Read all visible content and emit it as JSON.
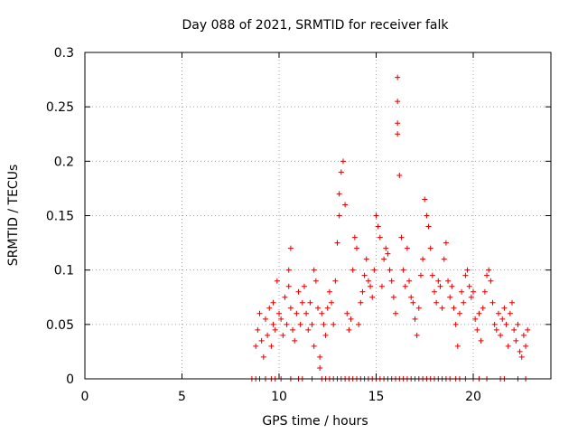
{
  "chart_data": {
    "type": "scatter",
    "title": "Day 088 of 2021, SRMTID for receiver falk",
    "xlabel": "GPS time / hours",
    "ylabel": "SRMTID / TECUs",
    "xlim": [
      0,
      24
    ],
    "ylim": [
      0,
      0.3
    ],
    "x_ticks": [
      0,
      5,
      10,
      15,
      20
    ],
    "x_tick_labels": [
      "0",
      "5",
      "10",
      "15",
      "20"
    ],
    "y_ticks": [
      0,
      0.05,
      0.1,
      0.15,
      0.2,
      0.25,
      0.3
    ],
    "y_tick_labels": [
      "0",
      "0.05",
      "0.1",
      "0.15",
      "0.2",
      "0.25",
      "0.3"
    ],
    "grid": true,
    "marker": "+",
    "series": [
      {
        "name": "SRMTID",
        "color": "#dd0000",
        "points": [
          [
            8.6,
            0
          ],
          [
            8.8,
            0
          ],
          [
            9.0,
            0
          ],
          [
            9.3,
            0
          ],
          [
            9.6,
            0
          ],
          [
            9.8,
            0
          ],
          [
            10.1,
            0
          ],
          [
            10.6,
            0
          ],
          [
            11.0,
            0
          ],
          [
            11.2,
            0
          ],
          [
            11.7,
            0
          ],
          [
            12.2,
            0
          ],
          [
            12.4,
            0
          ],
          [
            12.6,
            0
          ],
          [
            12.8,
            0
          ],
          [
            13.0,
            0
          ],
          [
            13.2,
            0
          ],
          [
            13.4,
            0
          ],
          [
            13.6,
            0
          ],
          [
            13.8,
            0
          ],
          [
            14.0,
            0
          ],
          [
            14.2,
            0
          ],
          [
            14.4,
            0
          ],
          [
            14.6,
            0
          ],
          [
            14.8,
            0
          ],
          [
            15.0,
            0
          ],
          [
            15.2,
            0
          ],
          [
            15.4,
            0
          ],
          [
            15.6,
            0
          ],
          [
            15.8,
            0
          ],
          [
            16.0,
            0
          ],
          [
            16.2,
            0
          ],
          [
            16.4,
            0
          ],
          [
            16.6,
            0
          ],
          [
            16.8,
            0
          ],
          [
            17.0,
            0
          ],
          [
            17.2,
            0
          ],
          [
            17.4,
            0
          ],
          [
            17.6,
            0
          ],
          [
            17.8,
            0
          ],
          [
            18.0,
            0
          ],
          [
            18.2,
            0
          ],
          [
            18.4,
            0
          ],
          [
            18.6,
            0
          ],
          [
            18.8,
            0
          ],
          [
            19.1,
            0
          ],
          [
            19.3,
            0
          ],
          [
            19.6,
            0
          ],
          [
            20.0,
            0
          ],
          [
            20.3,
            0
          ],
          [
            20.7,
            0
          ],
          [
            21.4,
            0
          ],
          [
            21.6,
            0
          ],
          [
            22.3,
            0
          ],
          [
            22.7,
            0
          ],
          [
            8.8,
            0.03
          ],
          [
            8.9,
            0.045
          ],
          [
            9.0,
            0.06
          ],
          [
            9.1,
            0.035
          ],
          [
            9.2,
            0.02
          ],
          [
            9.3,
            0.055
          ],
          [
            9.4,
            0.04
          ],
          [
            9.5,
            0.065
          ],
          [
            9.6,
            0.03
          ],
          [
            9.7,
            0.05
          ],
          [
            9.7,
            0.07
          ],
          [
            9.8,
            0.045
          ],
          [
            9.9,
            0.09
          ],
          [
            10.0,
            0.06
          ],
          [
            10.1,
            0.055
          ],
          [
            10.2,
            0.04
          ],
          [
            10.3,
            0.075
          ],
          [
            10.4,
            0.05
          ],
          [
            10.5,
            0.085
          ],
          [
            10.5,
            0.1
          ],
          [
            10.6,
            0.12
          ],
          [
            10.6,
            0.065
          ],
          [
            10.7,
            0.045
          ],
          [
            10.8,
            0.035
          ],
          [
            10.9,
            0.06
          ],
          [
            11.0,
            0.08
          ],
          [
            11.1,
            0.05
          ],
          [
            11.2,
            0.07
          ],
          [
            11.3,
            0.085
          ],
          [
            11.4,
            0.06
          ],
          [
            11.5,
            0.045
          ],
          [
            11.6,
            0.07
          ],
          [
            11.7,
            0.05
          ],
          [
            11.8,
            0.1
          ],
          [
            11.8,
            0.03
          ],
          [
            11.9,
            0.09
          ],
          [
            12.0,
            0.065
          ],
          [
            12.1,
            0.02
          ],
          [
            12.1,
            0.01
          ],
          [
            12.2,
            0.06
          ],
          [
            12.3,
            0.05
          ],
          [
            12.4,
            0.04
          ],
          [
            12.5,
            0.065
          ],
          [
            12.6,
            0.08
          ],
          [
            12.7,
            0.07
          ],
          [
            12.8,
            0.05
          ],
          [
            12.9,
            0.09
          ],
          [
            13.0,
            0.125
          ],
          [
            13.1,
            0.15
          ],
          [
            13.1,
            0.17
          ],
          [
            13.2,
            0.19
          ],
          [
            13.3,
            0.2
          ],
          [
            13.4,
            0.16
          ],
          [
            13.5,
            0.06
          ],
          [
            13.6,
            0.045
          ],
          [
            13.7,
            0.055
          ],
          [
            13.8,
            0.1
          ],
          [
            13.9,
            0.13
          ],
          [
            14.0,
            0.12
          ],
          [
            14.1,
            0.05
          ],
          [
            14.2,
            0.07
          ],
          [
            14.3,
            0.08
          ],
          [
            14.4,
            0.095
          ],
          [
            14.5,
            0.11
          ],
          [
            14.6,
            0.09
          ],
          [
            14.7,
            0.085
          ],
          [
            14.8,
            0.075
          ],
          [
            14.9,
            0.1
          ],
          [
            15.0,
            0.15
          ],
          [
            15.1,
            0.14
          ],
          [
            15.2,
            0.13
          ],
          [
            15.3,
            0.085
          ],
          [
            15.4,
            0.11
          ],
          [
            15.5,
            0.12
          ],
          [
            15.6,
            0.115
          ],
          [
            15.7,
            0.1
          ],
          [
            15.8,
            0.09
          ],
          [
            15.9,
            0.075
          ],
          [
            16.0,
            0.06
          ],
          [
            16.1,
            0.277
          ],
          [
            16.1,
            0.255
          ],
          [
            16.1,
            0.235
          ],
          [
            16.1,
            0.225
          ],
          [
            16.2,
            0.187
          ],
          [
            16.3,
            0.13
          ],
          [
            16.4,
            0.1
          ],
          [
            16.5,
            0.085
          ],
          [
            16.6,
            0.12
          ],
          [
            16.7,
            0.09
          ],
          [
            16.8,
            0.075
          ],
          [
            16.9,
            0.07
          ],
          [
            17.0,
            0.055
          ],
          [
            17.1,
            0.04
          ],
          [
            17.2,
            0.065
          ],
          [
            17.3,
            0.095
          ],
          [
            17.4,
            0.11
          ],
          [
            17.5,
            0.165
          ],
          [
            17.6,
            0.15
          ],
          [
            17.7,
            0.14
          ],
          [
            17.8,
            0.12
          ],
          [
            17.9,
            0.095
          ],
          [
            18.0,
            0.08
          ],
          [
            18.1,
            0.07
          ],
          [
            18.2,
            0.09
          ],
          [
            18.3,
            0.085
          ],
          [
            18.4,
            0.065
          ],
          [
            18.5,
            0.11
          ],
          [
            18.6,
            0.125
          ],
          [
            18.7,
            0.09
          ],
          [
            18.8,
            0.075
          ],
          [
            18.9,
            0.085
          ],
          [
            19.0,
            0.065
          ],
          [
            19.1,
            0.05
          ],
          [
            19.2,
            0.03
          ],
          [
            19.3,
            0.06
          ],
          [
            19.4,
            0.08
          ],
          [
            19.5,
            0.07
          ],
          [
            19.6,
            0.095
          ],
          [
            19.7,
            0.1
          ],
          [
            19.8,
            0.085
          ],
          [
            19.9,
            0.075
          ],
          [
            20.0,
            0.08
          ],
          [
            20.1,
            0.055
          ],
          [
            20.2,
            0.045
          ],
          [
            20.3,
            0.06
          ],
          [
            20.4,
            0.035
          ],
          [
            20.5,
            0.065
          ],
          [
            20.6,
            0.08
          ],
          [
            20.7,
            0.095
          ],
          [
            20.8,
            0.1
          ],
          [
            20.9,
            0.09
          ],
          [
            21.0,
            0.07
          ],
          [
            21.1,
            0.05
          ],
          [
            21.2,
            0.045
          ],
          [
            21.3,
            0.06
          ],
          [
            21.4,
            0.04
          ],
          [
            21.5,
            0.055
          ],
          [
            21.6,
            0.065
          ],
          [
            21.7,
            0.05
          ],
          [
            21.8,
            0.03
          ],
          [
            21.9,
            0.06
          ],
          [
            22.0,
            0.07
          ],
          [
            22.1,
            0.045
          ],
          [
            22.2,
            0.035
          ],
          [
            22.3,
            0.05
          ],
          [
            22.4,
            0.025
          ],
          [
            22.5,
            0.02
          ],
          [
            22.6,
            0.04
          ],
          [
            22.7,
            0.03
          ],
          [
            22.8,
            0.045
          ]
        ]
      }
    ]
  }
}
